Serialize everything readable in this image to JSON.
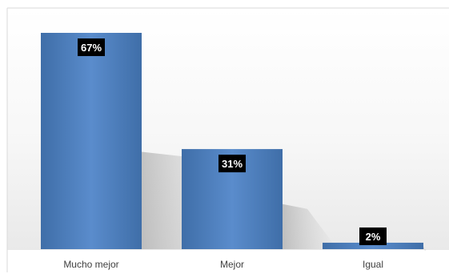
{
  "chart_data": {
    "type": "bar",
    "categories": [
      "Mucho mejor",
      "Mejor",
      "Igual"
    ],
    "values": [
      67,
      31,
      2
    ],
    "data_labels": [
      "67%",
      "31%",
      "2%"
    ],
    "title": "",
    "xlabel": "",
    "ylabel": "",
    "ylim": [
      0,
      67
    ],
    "grid": false,
    "legend": "none",
    "colors": {
      "bar": "#4f81bd",
      "bar_light": "#5a8ccc",
      "bar_dark": "#3f6ea8",
      "label_bg": "#000000",
      "label_text": "#ffffff",
      "axis_text": "#404040"
    }
  }
}
